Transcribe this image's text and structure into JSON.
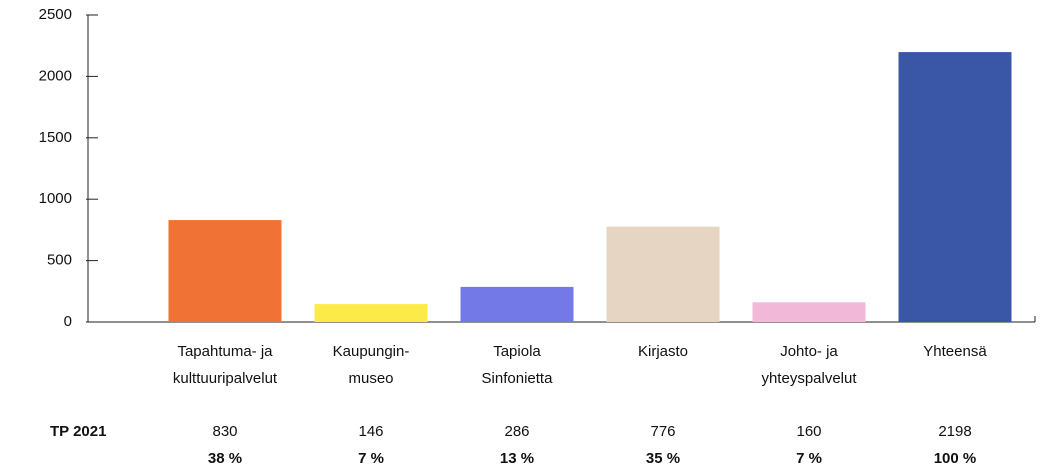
{
  "chart_data": {
    "type": "bar",
    "categories": [
      [
        "Tapahtuma- ja",
        "kulttuuripalvelut"
      ],
      [
        "Kaupungin-",
        "museo"
      ],
      [
        "Tapiola",
        "Sinfonietta"
      ],
      [
        "Kirjasto"
      ],
      [
        "Johto- ja",
        "yhteyspalvelut"
      ],
      [
        "Yhteensä"
      ]
    ],
    "values": [
      830,
      146,
      286,
      776,
      160,
      2198
    ],
    "colors": [
      "#f07335",
      "#fcea4a",
      "#7479e8",
      "#e5d5c2",
      "#f2b8d8",
      "#3a56a6"
    ],
    "ylim": [
      0,
      2500
    ],
    "yticks": [
      0,
      500,
      1000,
      1500,
      2000,
      2500
    ],
    "table_row_label": "TP 2021",
    "share_labels": [
      "38 %",
      "7 %",
      "13 %",
      "35 %",
      "7 %",
      "100 %"
    ]
  }
}
